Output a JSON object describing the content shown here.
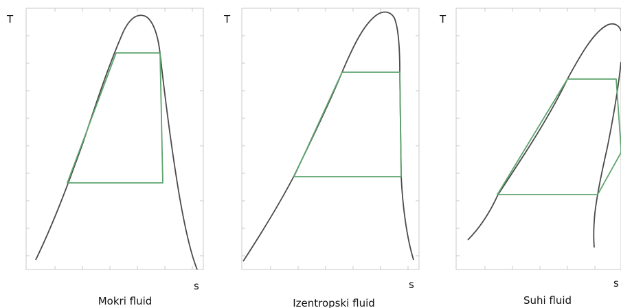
{
  "panels": [
    {
      "id": "mokri",
      "y_axis_letter": "T",
      "x_axis_letter": "s",
      "caption": "Mokri fluid",
      "colors": {
        "dome": "#4a4a4a",
        "cycle": "#5fa46e"
      }
    },
    {
      "id": "izentropski",
      "y_axis_letter": "T",
      "x_axis_letter": "s",
      "caption": "Izentropski fluid",
      "colors": {
        "dome": "#4a4a4a",
        "cycle": "#5fa46e"
      }
    },
    {
      "id": "suhi",
      "y_axis_letter": "T",
      "x_axis_letter": "s",
      "caption": "Suhi fluid",
      "colors": {
        "dome": "#4a4a4a",
        "cycle": "#5fa46e"
      }
    }
  ]
}
